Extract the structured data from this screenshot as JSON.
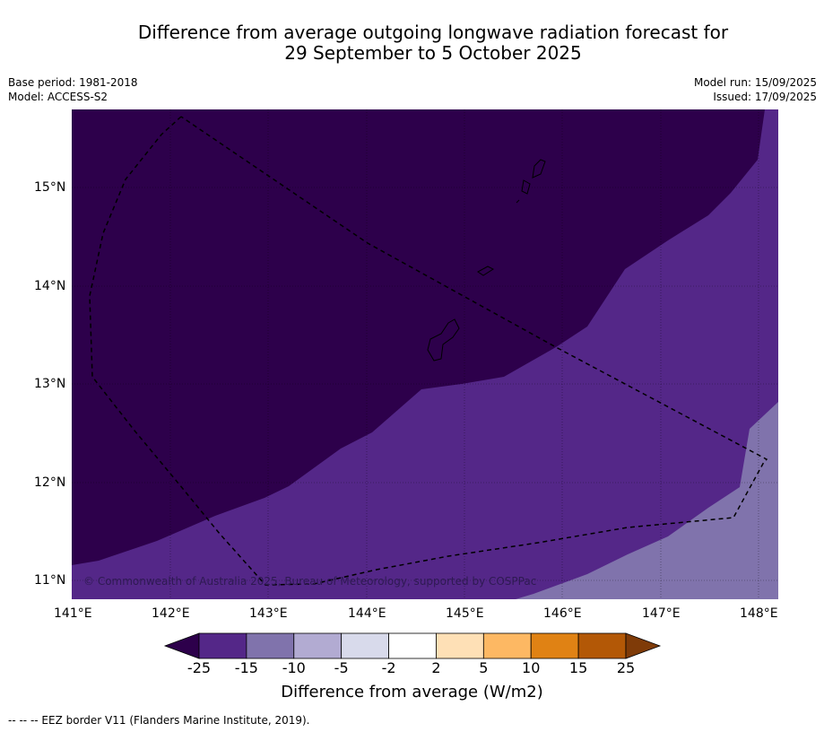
{
  "title": {
    "line1": "Difference from average outgoing longwave radiation forecast for",
    "line2": "29 September to 5 October 2025"
  },
  "meta": {
    "base_period": "Base period: 1981-2018",
    "model": "Model: ACCESS-S2",
    "model_run": "Model run: 15/09/2025",
    "issued": "Issued: 17/09/2025"
  },
  "map": {
    "lon_labels": [
      "141°E",
      "142°E",
      "143°E",
      "144°E",
      "145°E",
      "146°E",
      "147°E",
      "148°E"
    ],
    "lat_labels": [
      "15°N",
      "14°N",
      "13°N",
      "12°N",
      "11°N"
    ],
    "copyright": "© Commonwealth of Australia 2025, Bureau of Meteorology, supported by COSPPac"
  },
  "colorbar": {
    "ticks": [
      "-25",
      "-15",
      "-10",
      "-5",
      "-2",
      "2",
      "5",
      "10",
      "15",
      "25"
    ],
    "colors": [
      "#2d004b",
      "#542788",
      "#8073ac",
      "#b2abd2",
      "#d8daeb",
      "#ffffff",
      "#fee0b6",
      "#fdb863",
      "#e08214",
      "#b35806",
      "#7f3b08"
    ],
    "title": "Difference from average (W/m2)"
  },
  "footnote": "--  --  -- EEZ border V11 (Flanders Marine Institute, 2019)."
}
